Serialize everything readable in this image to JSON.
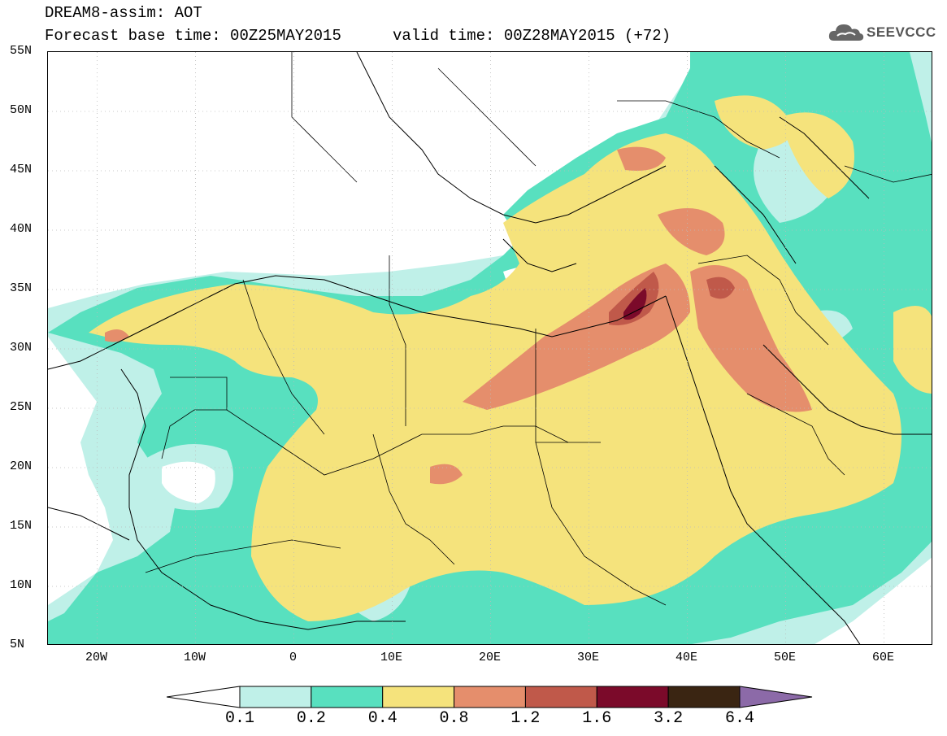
{
  "header": {
    "title_line1": "DREAM8-assim: AOT",
    "title_line2": "Forecast base time: 00Z25MAY2015",
    "valid_time": "valid time: 00Z28MAY2015 (+72)",
    "logo_text": "SEEVCCC",
    "logo_icon": "cloud-icon"
  },
  "map": {
    "lat_labels": [
      "55N",
      "50N",
      "45N",
      "40N",
      "35N",
      "30N",
      "25N",
      "20N",
      "15N",
      "10N",
      "5N"
    ],
    "lon_labels": [
      "20W",
      "10W",
      "0",
      "10E",
      "20E",
      "30E",
      "40E",
      "50E",
      "60E"
    ],
    "extent": {
      "lon_min": -25,
      "lon_max": 65,
      "lat_min": 5,
      "lat_max": 55
    }
  },
  "colorbar": {
    "levels": [
      "0.1",
      "0.2",
      "0.4",
      "0.8",
      "1.2",
      "1.6",
      "3.2",
      "6.4"
    ],
    "colors": [
      "#ffffff",
      "#bff0e8",
      "#58e0bf",
      "#f5e37c",
      "#e58e6c",
      "#c0594a",
      "#7b0a2a",
      "#3a2512",
      "#8c6aa8"
    ]
  }
}
